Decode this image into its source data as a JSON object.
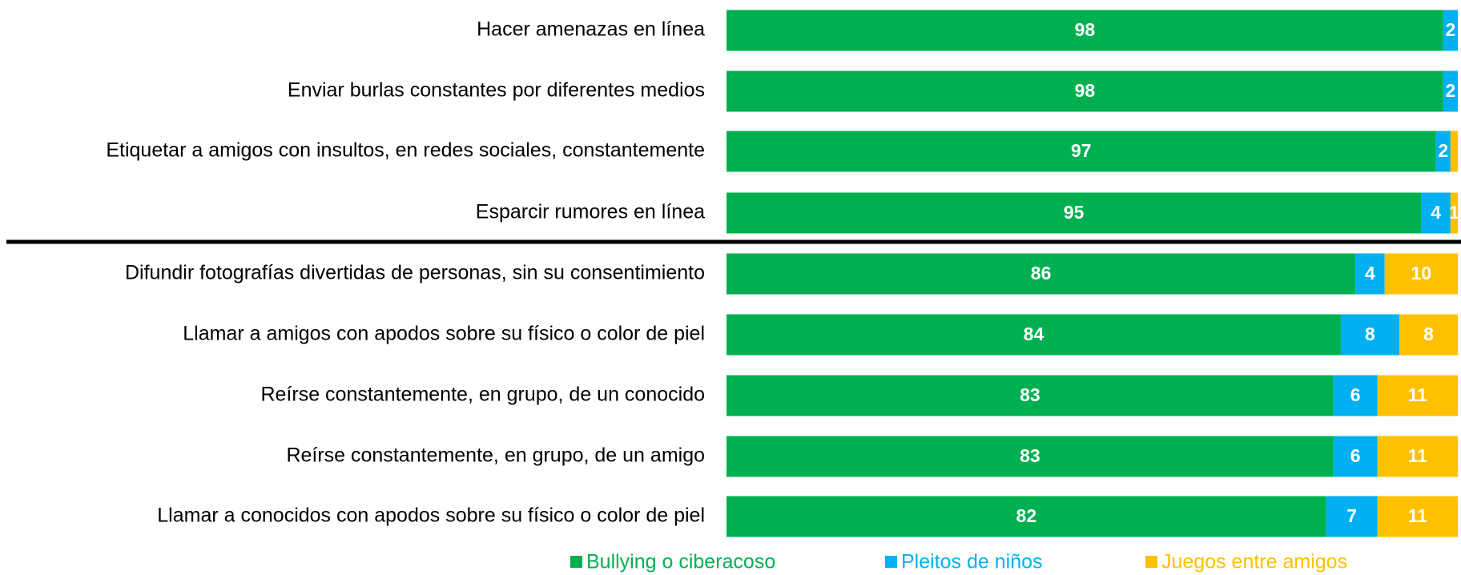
{
  "chart_data": {
    "type": "stacked-bar-horizontal",
    "categories": [
      "Hacer amenazas en línea",
      "Enviar burlas constantes por diferentes medios",
      "Etiquetar a amigos con insultos, en redes sociales, constantemente",
      "Esparcir rumores en línea",
      "Difundir fotografías divertidas de personas, sin su consentimiento",
      "Llamar a amigos con apodos sobre su físico o color de piel",
      "Reírse constantemente, en grupo, de un conocido",
      "Reírse constantemente, en grupo, de un amigo",
      "Llamar a conocidos con apodos sobre su físico o color de piel"
    ],
    "series": [
      {
        "name": "Bullying o ciberacoso",
        "color": "#00b050",
        "values": [
          98,
          98,
          97,
          95,
          86,
          84,
          83,
          83,
          82
        ]
      },
      {
        "name": "Pleitos de niños",
        "color": "#00b0f0",
        "values": [
          2,
          2,
          2,
          4,
          4,
          8,
          6,
          6,
          7
        ]
      },
      {
        "name": "Juegos entre amigos",
        "color": "#ffc000",
        "values": [
          0,
          0,
          1,
          1,
          10,
          8,
          11,
          11,
          11
        ],
        "value_labels": [
          null,
          null,
          null,
          "1",
          "10",
          "8",
          "11",
          "11",
          "11"
        ]
      }
    ],
    "xlim": [
      0,
      100
    ]
  }
}
